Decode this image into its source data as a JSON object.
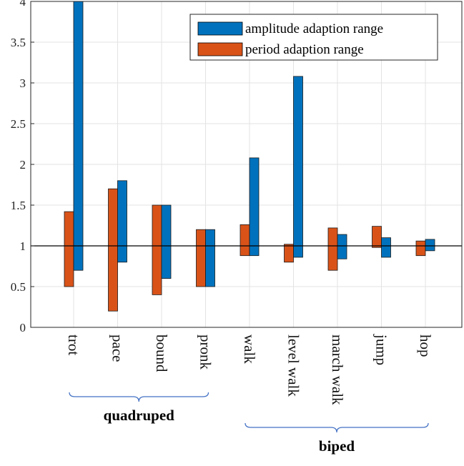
{
  "chart_data": {
    "type": "bar",
    "title": "",
    "xlabel": "",
    "ylabel": "",
    "ylim": [
      0,
      4
    ],
    "yticks": [
      0,
      0.5,
      1,
      1.5,
      2,
      2.5,
      3,
      3.5,
      4
    ],
    "ytick_labels": [
      "0",
      "0.5",
      "1",
      "1.5",
      "2",
      "2.5",
      "3",
      "3.5",
      "4"
    ],
    "grid": true,
    "legend_position": "top-right",
    "reference_line": 1,
    "categories": [
      "trot",
      "pace",
      "bound",
      "pronk",
      "walk",
      "level walk",
      "march walk",
      "jump",
      "hop"
    ],
    "series": [
      {
        "name": "period adaption range",
        "color": "#D95319",
        "ranges": [
          [
            0.5,
            1.42
          ],
          [
            0.2,
            1.7
          ],
          [
            0.4,
            1.5
          ],
          [
            0.5,
            1.2
          ],
          [
            0.88,
            1.26
          ],
          [
            0.8,
            1.02
          ],
          [
            0.7,
            1.22
          ],
          [
            0.98,
            1.24
          ],
          [
            0.88,
            1.06
          ]
        ]
      },
      {
        "name": "amplitude adaption range",
        "color": "#0072BD",
        "ranges": [
          [
            0.7,
            4.0
          ],
          [
            0.8,
            1.8
          ],
          [
            0.6,
            1.5
          ],
          [
            0.5,
            1.2
          ],
          [
            0.88,
            2.08
          ],
          [
            0.86,
            3.08
          ],
          [
            0.84,
            1.14
          ],
          [
            0.86,
            1.1
          ],
          [
            0.94,
            1.08
          ]
        ]
      }
    ],
    "legend_order": [
      1,
      0
    ],
    "groups": [
      {
        "label": "quadruped",
        "from": 0,
        "to": 3
      },
      {
        "label": "biped",
        "from": 4,
        "to": 8
      }
    ]
  }
}
